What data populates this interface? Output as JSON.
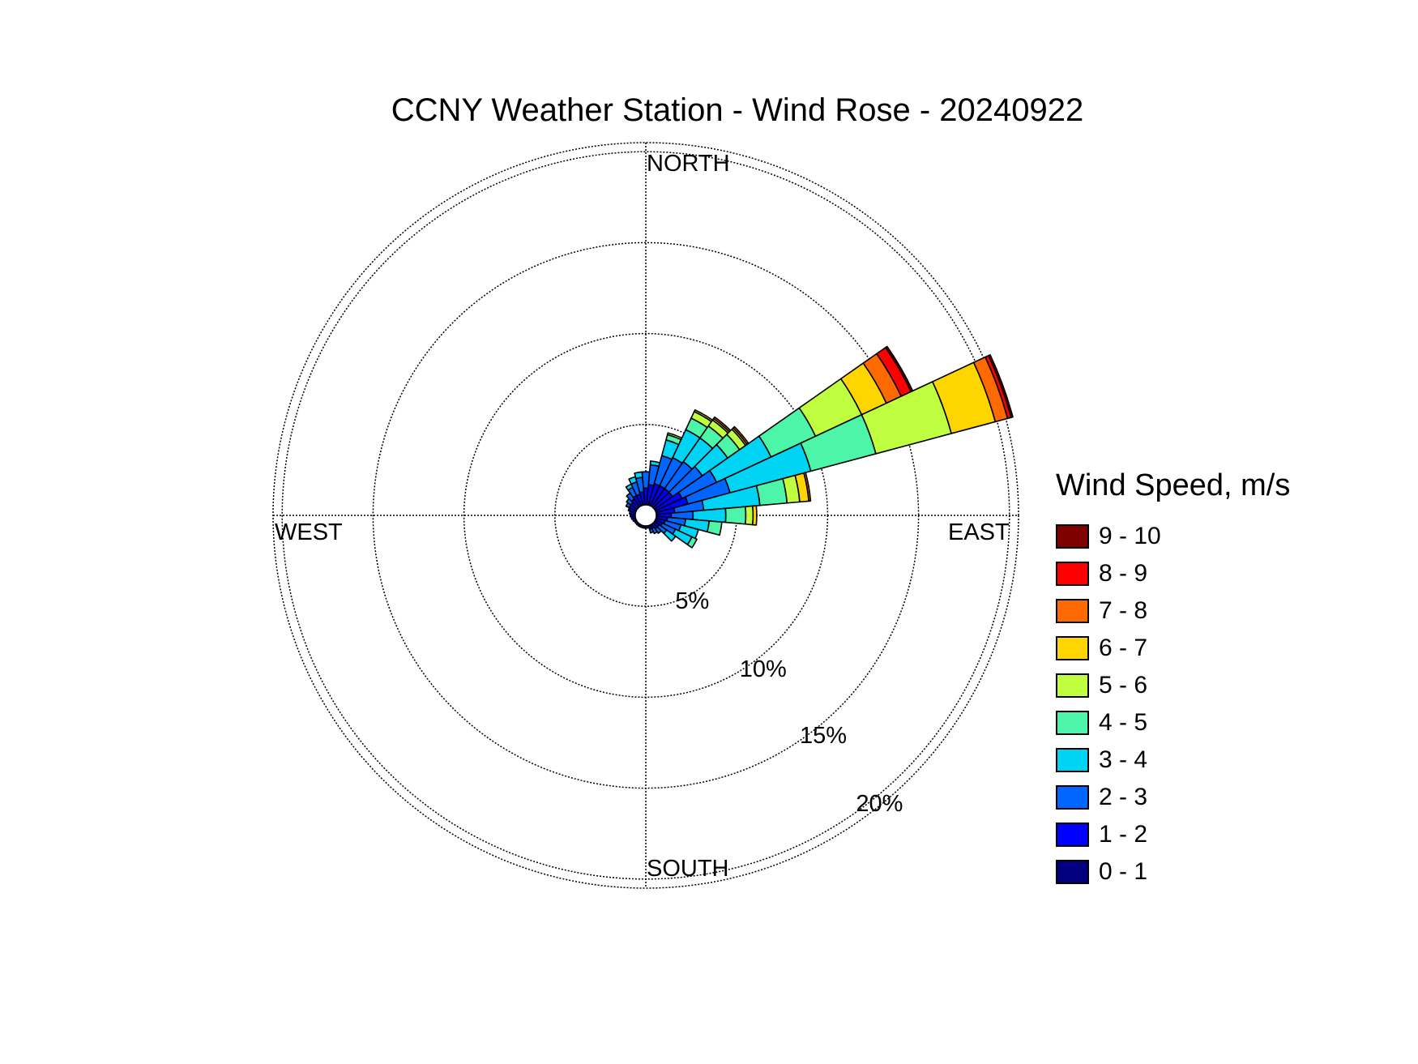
{
  "chart_data": {
    "type": "wind-rose",
    "title": "CCNY Weather Station - Wind Rose - 20240922",
    "direction_labels": {
      "north": "NORTH",
      "south": "SOUTH",
      "east": "EAST",
      "west": "WEST"
    },
    "rings": [
      {
        "value": 5,
        "label": "5%"
      },
      {
        "value": 10,
        "label": "10%"
      },
      {
        "value": 15,
        "label": "15%"
      },
      {
        "value": 20,
        "label": "20%"
      }
    ],
    "r_max_percent": 20.5,
    "grid": true,
    "legend": {
      "title": "Wind Speed, m/s",
      "placement": "right"
    },
    "speed_bins": [
      {
        "label": "0 - 1",
        "color": "#000080"
      },
      {
        "label": "1 - 2",
        "color": "#0000FF"
      },
      {
        "label": "2 - 3",
        "color": "#0066FF"
      },
      {
        "label": "3 - 4",
        "color": "#00D4F5"
      },
      {
        "label": "4 - 5",
        "color": "#4DF5A8"
      },
      {
        "label": "5 - 6",
        "color": "#BFFF40"
      },
      {
        "label": "6 - 7",
        "color": "#FFD500"
      },
      {
        "label": "7 - 8",
        "color": "#FF6A00"
      },
      {
        "label": "8 - 9",
        "color": "#FF0000"
      },
      {
        "label": "9 - 10",
        "color": "#800000"
      }
    ],
    "sector_width_deg": 10,
    "sectors": [
      {
        "direction": 0,
        "cumulative": [
          0.6,
          1.5,
          2.4
        ]
      },
      {
        "direction": 10,
        "cumulative": [
          0.6,
          1.7,
          2.8,
          3.0
        ]
      },
      {
        "direction": 20,
        "cumulative": [
          0.6,
          1.8,
          3.4,
          4.3,
          4.6,
          4.7
        ]
      },
      {
        "direction": 30,
        "cumulative": [
          0.6,
          1.8,
          3.5,
          5.2,
          5.9,
          6.3,
          6.4
        ]
      },
      {
        "direction": 40,
        "cumulative": [
          0.6,
          1.8,
          3.6,
          5.2,
          6.0,
          6.4,
          6.5,
          6.6
        ]
      },
      {
        "direction": 50,
        "cumulative": [
          0.6,
          1.8,
          3.8,
          5.5,
          6.3,
          6.7,
          6.8,
          6.9
        ]
      },
      {
        "direction": 60,
        "cumulative": [
          0.6,
          2.2,
          4.3,
          7.6,
          10.3,
          13.1,
          14.6,
          15.5,
          16.1,
          16.2
        ]
      },
      {
        "direction": 70,
        "cumulative": [
          0.6,
          2.4,
          4.8,
          9.4,
          13.1,
          17.4,
          19.9,
          20.6,
          20.8,
          20.9
        ]
      },
      {
        "direction": 80,
        "cumulative": [
          0.6,
          1.6,
          3.2,
          6.3,
          7.8,
          8.5,
          9.0,
          9.1
        ]
      },
      {
        "direction": 90,
        "cumulative": [
          0.6,
          1.4,
          2.6,
          4.4,
          5.5,
          5.9,
          6.1
        ]
      },
      {
        "direction": 100,
        "cumulative": [
          0.6,
          1.2,
          2.2,
          3.5,
          4.2
        ]
      },
      {
        "direction": 110,
        "cumulative": [
          0.6,
          1.1,
          2.0,
          3.0
        ]
      },
      {
        "direction": 120,
        "cumulative": [
          0.6,
          1.0,
          1.8,
          2.8,
          3.1
        ]
      },
      {
        "direction": 130,
        "cumulative": [
          0.5,
          0.9,
          1.4,
          2.0
        ]
      },
      {
        "direction": 140,
        "cumulative": [
          0.5,
          0.9,
          1.2
        ]
      },
      {
        "direction": 150,
        "cumulative": [
          0.5,
          0.8,
          1.1
        ]
      },
      {
        "direction": 160,
        "cumulative": [
          0.5,
          0.8,
          1.0
        ]
      },
      {
        "direction": 170,
        "cumulative": [
          0.5,
          0.7
        ]
      },
      {
        "direction": 180,
        "cumulative": [
          0.5,
          0.7
        ]
      },
      {
        "direction": 190,
        "cumulative": [
          0.5,
          0.7
        ]
      },
      {
        "direction": 200,
        "cumulative": [
          0.5,
          0.7
        ]
      },
      {
        "direction": 210,
        "cumulative": [
          0.5,
          0.7
        ]
      },
      {
        "direction": 220,
        "cumulative": [
          0.5,
          0.7
        ]
      },
      {
        "direction": 230,
        "cumulative": [
          0.5,
          0.7
        ]
      },
      {
        "direction": 240,
        "cumulative": [
          0.5,
          0.7
        ]
      },
      {
        "direction": 250,
        "cumulative": [
          0.5,
          0.75
        ]
      },
      {
        "direction": 260,
        "cumulative": [
          0.5,
          0.8
        ]
      },
      {
        "direction": 270,
        "cumulative": [
          0.5,
          0.85
        ]
      },
      {
        "direction": 280,
        "cumulative": [
          0.5,
          0.9
        ]
      },
      {
        "direction": 290,
        "cumulative": [
          0.5,
          0.95,
          1.0
        ]
      },
      {
        "direction": 300,
        "cumulative": [
          0.55,
          1.0,
          1.2
        ]
      },
      {
        "direction": 310,
        "cumulative": [
          0.55,
          1.0,
          1.3
        ]
      },
      {
        "direction": 320,
        "cumulative": [
          0.55,
          1.1,
          1.5
        ]
      },
      {
        "direction": 330,
        "cumulative": [
          0.55,
          1.2,
          1.7,
          1.9
        ]
      },
      {
        "direction": 340,
        "cumulative": [
          0.55,
          1.2,
          1.9,
          2.2
        ]
      },
      {
        "direction": 350,
        "cumulative": [
          0.55,
          1.3,
          2.1,
          2.4
        ]
      }
    ]
  }
}
